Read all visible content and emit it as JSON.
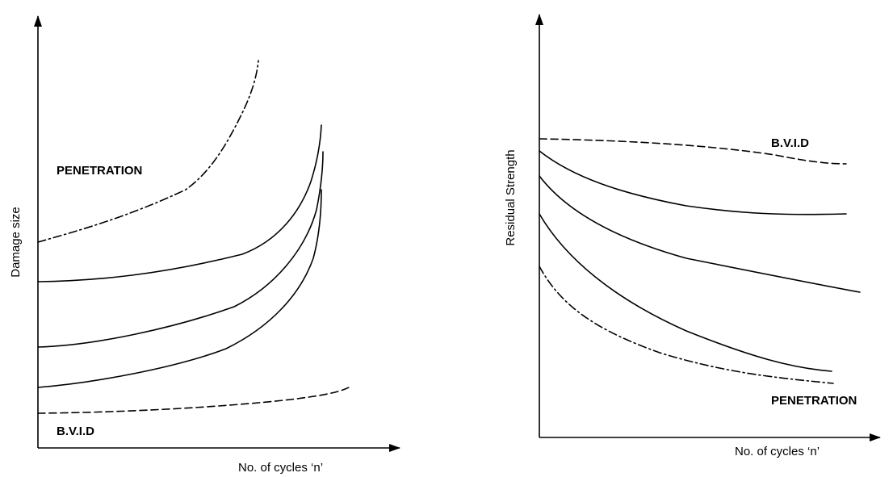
{
  "left": {
    "y_label": "Damage size",
    "x_label": "No. of cycles ‘n’",
    "penetration_label": "PENETRATION",
    "bvid_label": "B.V.I.D"
  },
  "right": {
    "y_label": "Residual Strength",
    "x_label": "No. of cycles ‘n’",
    "bvid_label": "B.V.I.D",
    "penetration_label": "PENETRATION"
  }
}
